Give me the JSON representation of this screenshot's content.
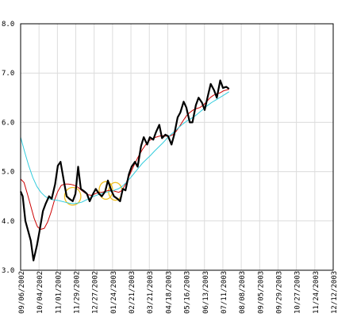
{
  "chart_data": {
    "type": "line",
    "title": "",
    "xlabel": "",
    "ylabel": "",
    "ylim": [
      3.0,
      8.0
    ],
    "yticks": [
      "3.0",
      "4.0",
      "5.0",
      "6.0",
      "7.0",
      "8.0"
    ],
    "xlim": [
      "2002-09-06",
      "2003-12-12"
    ],
    "x_tick_labels": [
      "09/06/2002",
      "10/04/2002",
      "11/01/2002",
      "11/29/2002",
      "12/27/2002",
      "01/24/2003",
      "02/21/2003",
      "03/21/2003",
      "04/18/2003",
      "05/16/2003",
      "06/13/2003",
      "07/11/2003",
      "08/08/2003",
      "09/05/2003",
      "09/29/2003",
      "10/27/2003",
      "11/24/2003",
      "12/12/2003"
    ],
    "grid": true,
    "legend": "none",
    "series": [
      {
        "color": "#000000",
        "values": [
          [
            "2002-09-06",
            4.6
          ],
          [
            "2002-09-09",
            4.5
          ],
          [
            "2002-09-13",
            4.0
          ],
          [
            "2002-09-17",
            3.8
          ],
          [
            "2002-09-21",
            3.6
          ],
          [
            "2002-09-25",
            3.2
          ],
          [
            "2002-09-30",
            3.5
          ],
          [
            "2002-10-04",
            3.8
          ],
          [
            "2002-10-09",
            4.2
          ],
          [
            "2002-10-13",
            4.35
          ],
          [
            "2002-10-18",
            4.5
          ],
          [
            "2002-10-22",
            4.45
          ],
          [
            "2002-10-27",
            4.75
          ],
          [
            "2002-10-31",
            5.12
          ],
          [
            "2002-11-04",
            5.2
          ],
          [
            "2002-11-09",
            4.8
          ],
          [
            "2002-11-13",
            4.5
          ],
          [
            "2002-11-17",
            4.45
          ],
          [
            "2002-11-22",
            4.4
          ],
          [
            "2002-11-26",
            4.55
          ],
          [
            "2002-11-30",
            5.1
          ],
          [
            "2002-12-04",
            4.65
          ],
          [
            "2002-12-09",
            4.6
          ],
          [
            "2002-12-13",
            4.55
          ],
          [
            "2002-12-17",
            4.4
          ],
          [
            "2002-12-22",
            4.55
          ],
          [
            "2002-12-26",
            4.65
          ],
          [
            "2002-12-31",
            4.55
          ],
          [
            "2003-01-04",
            4.5
          ],
          [
            "2003-01-09",
            4.6
          ],
          [
            "2003-01-13",
            4.82
          ],
          [
            "2003-01-18",
            4.62
          ],
          [
            "2003-01-22",
            4.5
          ],
          [
            "2003-01-27",
            4.45
          ],
          [
            "2003-01-31",
            4.4
          ],
          [
            "2003-02-04",
            4.65
          ],
          [
            "2003-02-08",
            4.62
          ],
          [
            "2003-02-13",
            4.95
          ],
          [
            "2003-02-17",
            5.1
          ],
          [
            "2003-02-22",
            5.2
          ],
          [
            "2003-02-26",
            5.1
          ],
          [
            "2003-03-03",
            5.52
          ],
          [
            "2003-03-07",
            5.7
          ],
          [
            "2003-03-12",
            5.55
          ],
          [
            "2003-03-16",
            5.7
          ],
          [
            "2003-03-21",
            5.65
          ],
          [
            "2003-03-25",
            5.8
          ],
          [
            "2003-03-30",
            5.95
          ],
          [
            "2003-04-03",
            5.68
          ],
          [
            "2003-04-08",
            5.75
          ],
          [
            "2003-04-12",
            5.72
          ],
          [
            "2003-04-17",
            5.55
          ],
          [
            "2003-04-21",
            5.75
          ],
          [
            "2003-04-26",
            6.1
          ],
          [
            "2003-04-30",
            6.2
          ],
          [
            "2003-05-05",
            6.42
          ],
          [
            "2003-05-09",
            6.3
          ],
          [
            "2003-05-14",
            6.0
          ],
          [
            "2003-05-18",
            6.0
          ],
          [
            "2003-05-23",
            6.35
          ],
          [
            "2003-05-27",
            6.5
          ],
          [
            "2003-06-01",
            6.4
          ],
          [
            "2003-06-05",
            6.25
          ],
          [
            "2003-06-10",
            6.55
          ],
          [
            "2003-06-14",
            6.78
          ],
          [
            "2003-06-19",
            6.65
          ],
          [
            "2003-06-23",
            6.5
          ],
          [
            "2003-06-28",
            6.85
          ],
          [
            "2003-07-02",
            6.7
          ],
          [
            "2003-07-07",
            6.72
          ],
          [
            "2003-07-11",
            6.68
          ]
        ]
      },
      {
        "color": "#cc0000",
        "values": [
          [
            "2002-09-06",
            4.85
          ],
          [
            "2002-09-11",
            4.78
          ],
          [
            "2002-09-16",
            4.55
          ],
          [
            "2002-09-21",
            4.3
          ],
          [
            "2002-09-26",
            4.05
          ],
          [
            "2002-10-01",
            3.88
          ],
          [
            "2002-10-06",
            3.83
          ],
          [
            "2002-10-11",
            3.85
          ],
          [
            "2002-10-16",
            3.98
          ],
          [
            "2002-10-21",
            4.18
          ],
          [
            "2002-10-26",
            4.42
          ],
          [
            "2002-10-31",
            4.6
          ],
          [
            "2002-11-05",
            4.72
          ],
          [
            "2002-11-10",
            4.75
          ],
          [
            "2002-11-15",
            4.75
          ],
          [
            "2002-11-20",
            4.74
          ],
          [
            "2002-11-25",
            4.72
          ],
          [
            "2002-11-30",
            4.68
          ],
          [
            "2002-12-05",
            4.62
          ],
          [
            "2002-12-10",
            4.57
          ],
          [
            "2002-12-15",
            4.53
          ],
          [
            "2002-12-20",
            4.52
          ],
          [
            "2002-12-25",
            4.55
          ],
          [
            "2002-12-30",
            4.58
          ],
          [
            "2003-01-04",
            4.58
          ],
          [
            "2003-01-09",
            4.6
          ],
          [
            "2003-01-14",
            4.62
          ],
          [
            "2003-01-19",
            4.62
          ],
          [
            "2003-01-24",
            4.6
          ],
          [
            "2003-01-29",
            4.58
          ],
          [
            "2003-02-03",
            4.62
          ],
          [
            "2003-02-08",
            4.75
          ],
          [
            "2003-02-13",
            4.9
          ],
          [
            "2003-02-18",
            5.05
          ],
          [
            "2003-02-23",
            5.2
          ],
          [
            "2003-02-28",
            5.33
          ],
          [
            "2003-03-05",
            5.45
          ],
          [
            "2003-03-10",
            5.55
          ],
          [
            "2003-03-15",
            5.63
          ],
          [
            "2003-03-20",
            5.67
          ],
          [
            "2003-03-25",
            5.7
          ],
          [
            "2003-03-30",
            5.72
          ],
          [
            "2003-04-04",
            5.73
          ],
          [
            "2003-04-09",
            5.72
          ],
          [
            "2003-04-14",
            5.72
          ],
          [
            "2003-04-19",
            5.75
          ],
          [
            "2003-04-24",
            5.82
          ],
          [
            "2003-04-29",
            5.92
          ],
          [
            "2003-05-04",
            6.03
          ],
          [
            "2003-05-09",
            6.13
          ],
          [
            "2003-05-14",
            6.2
          ],
          [
            "2003-05-19",
            6.25
          ],
          [
            "2003-05-24",
            6.28
          ],
          [
            "2003-05-29",
            6.3
          ],
          [
            "2003-06-03",
            6.35
          ],
          [
            "2003-06-08",
            6.42
          ],
          [
            "2003-06-13",
            6.5
          ],
          [
            "2003-06-18",
            6.55
          ],
          [
            "2003-06-23",
            6.58
          ],
          [
            "2003-06-28",
            6.6
          ],
          [
            "2003-07-03",
            6.64
          ],
          [
            "2003-07-11",
            6.67
          ]
        ]
      },
      {
        "color": "#33ccdd",
        "values": [
          [
            "2002-09-06",
            5.7
          ],
          [
            "2002-09-12",
            5.4
          ],
          [
            "2002-09-18",
            5.12
          ],
          [
            "2002-09-24",
            4.88
          ],
          [
            "2002-09-30",
            4.7
          ],
          [
            "2002-10-06",
            4.58
          ],
          [
            "2002-10-12",
            4.5
          ],
          [
            "2002-10-18",
            4.45
          ],
          [
            "2002-10-24",
            4.43
          ],
          [
            "2002-10-30",
            4.42
          ],
          [
            "2002-11-05",
            4.4
          ],
          [
            "2002-11-11",
            4.38
          ],
          [
            "2002-11-17",
            4.36
          ],
          [
            "2002-11-23",
            4.35
          ],
          [
            "2002-11-29",
            4.36
          ],
          [
            "2002-12-05",
            4.38
          ],
          [
            "2002-12-11",
            4.42
          ],
          [
            "2002-12-17",
            4.46
          ],
          [
            "2002-12-23",
            4.5
          ],
          [
            "2002-12-29",
            4.53
          ],
          [
            "2003-01-04",
            4.56
          ],
          [
            "2003-01-10",
            4.58
          ],
          [
            "2003-01-16",
            4.6
          ],
          [
            "2003-01-22",
            4.62
          ],
          [
            "2003-01-28",
            4.65
          ],
          [
            "2003-02-03",
            4.7
          ],
          [
            "2003-02-09",
            4.78
          ],
          [
            "2003-02-15",
            4.87
          ],
          [
            "2003-02-21",
            4.97
          ],
          [
            "2003-02-27",
            5.07
          ],
          [
            "2003-03-05",
            5.17
          ],
          [
            "2003-03-11",
            5.25
          ],
          [
            "2003-03-17",
            5.33
          ],
          [
            "2003-03-23",
            5.42
          ],
          [
            "2003-03-29",
            5.5
          ],
          [
            "2003-04-04",
            5.58
          ],
          [
            "2003-04-10",
            5.67
          ],
          [
            "2003-04-16",
            5.75
          ],
          [
            "2003-04-22",
            5.82
          ],
          [
            "2003-04-28",
            5.9
          ],
          [
            "2003-05-04",
            5.97
          ],
          [
            "2003-05-10",
            6.03
          ],
          [
            "2003-05-16",
            6.08
          ],
          [
            "2003-05-22",
            6.13
          ],
          [
            "2003-05-28",
            6.2
          ],
          [
            "2003-06-03",
            6.27
          ],
          [
            "2003-06-09",
            6.34
          ],
          [
            "2003-06-15",
            6.4
          ],
          [
            "2003-06-21",
            6.45
          ],
          [
            "2003-06-27",
            6.5
          ],
          [
            "2003-07-03",
            6.55
          ],
          [
            "2003-07-11",
            6.62
          ]
        ]
      }
    ],
    "annotations": [
      {
        "shape": "ellipse",
        "color": "#f0c020",
        "center": [
          "2002-11-22",
          4.5
        ],
        "rx_days": 12,
        "ry": 0.18
      },
      {
        "shape": "ellipse",
        "color": "#f0c020",
        "center": [
          "2003-01-10",
          4.62
        ],
        "rx_days": 10,
        "ry": 0.18
      },
      {
        "shape": "ellipse",
        "color": "#f0c020",
        "center": [
          "2003-01-24",
          4.6
        ],
        "rx_days": 10,
        "ry": 0.18
      }
    ]
  }
}
